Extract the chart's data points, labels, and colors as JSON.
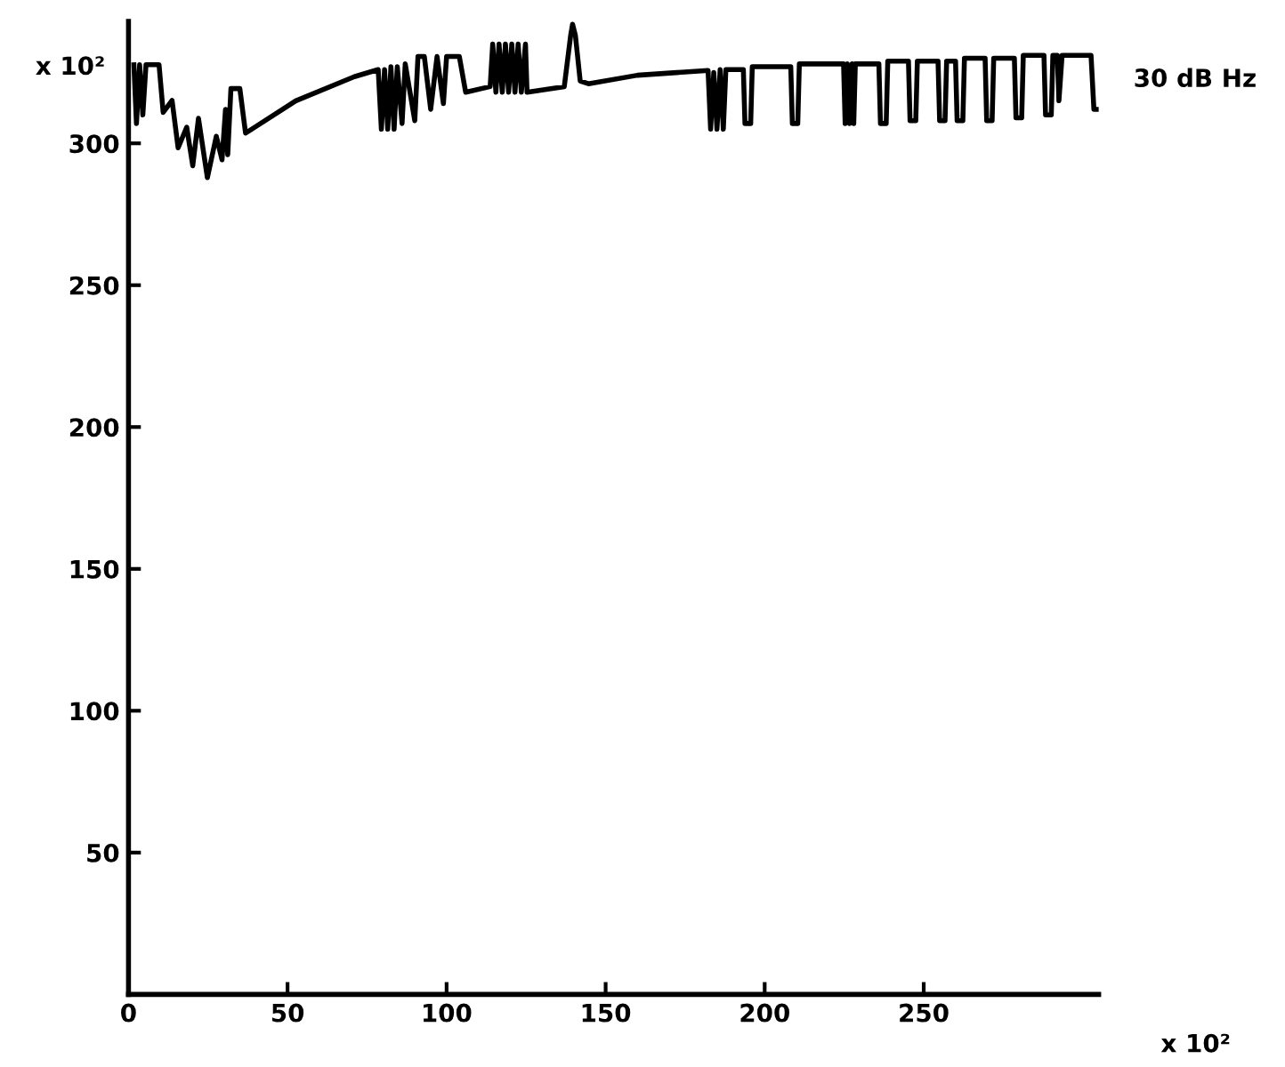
{
  "chart_data": {
    "type": "line",
    "xlabel": "x 10²",
    "ylabel": "x 10²",
    "annotations": [
      "30 dB Hz"
    ],
    "xlim": [
      0,
      305
    ],
    "ylim": [
      0,
      343
    ],
    "xticks": [
      0,
      50,
      100,
      150,
      200,
      250
    ],
    "yticks": [
      50,
      100,
      150,
      200,
      250,
      300
    ],
    "grid": false,
    "legend": false,
    "marker": "none",
    "line_style": "solid",
    "series": [
      {
        "color": "#000000",
        "x": [
          1.7,
          2.5,
          3.5,
          4.5,
          5.5,
          9.6,
          10.9,
          13.7,
          15.6,
          18.3,
          20.2,
          22,
          24.8,
          27.6,
          29.4,
          30.5,
          31.2,
          32.2,
          35,
          36.8,
          52.6,
          71,
          78.5,
          79.5,
          80.5,
          81.5,
          82.5,
          83.5,
          84.5,
          86,
          87,
          90,
          91,
          93,
          95,
          97,
          99,
          100,
          104,
          106,
          113.7,
          114.5,
          115.5,
          116.5,
          117.5,
          118.5,
          119.5,
          120.5,
          121.5,
          122.5,
          123.5,
          124.8,
          125.3,
          137,
          139,
          139.6,
          140.5,
          142,
          144.6,
          160,
          182.2,
          183,
          184,
          185,
          186,
          187,
          187.8,
          193.3,
          193.8,
          195.6,
          196.1,
          208.2,
          208.7,
          210.4,
          210.9,
          224.8,
          225.3,
          226,
          226.7,
          227.5,
          228,
          228.5,
          235.9,
          236.4,
          238.2,
          238.7,
          245.2,
          245.7,
          247.5,
          248,
          254.5,
          255,
          256.7,
          257.2,
          260,
          260.5,
          262.3,
          262.8,
          269.3,
          269.8,
          271.5,
          272,
          278.5,
          279,
          280.8,
          281.3,
          287.8,
          288.3,
          290.1,
          290.6,
          292,
          292.5,
          293.5,
          302.6,
          303.5,
          304.4
        ],
        "values": [
          327.7,
          307,
          327.7,
          310,
          327.7,
          327.7,
          310.9,
          315.1,
          298.4,
          305.7,
          292.1,
          308.8,
          287.9,
          302.5,
          294.2,
          312,
          296,
          319.3,
          319.3,
          303.6,
          315,
          323.5,
          326,
          305,
          326,
          305,
          327,
          305,
          327,
          307,
          328,
          308,
          330.6,
          330.6,
          312,
          330.6,
          314,
          330.6,
          330.6,
          318,
          320,
          335,
          318,
          335,
          318,
          335,
          318,
          335,
          318,
          335,
          318,
          335,
          318,
          320,
          338,
          342,
          338,
          322,
          321,
          324,
          325.7,
          305,
          325,
          305,
          326,
          305,
          326,
          326,
          307,
          307,
          327,
          327,
          307,
          307,
          328,
          328,
          307,
          328,
          307,
          328,
          307,
          328,
          328,
          307,
          307,
          329,
          329,
          308,
          308,
          329,
          329,
          308,
          308,
          329,
          329,
          308,
          308,
          330,
          330,
          308,
          308,
          330,
          330,
          309,
          309,
          331,
          331,
          310,
          310,
          331,
          331,
          315,
          331,
          331,
          312,
          312
        ]
      }
    ]
  }
}
